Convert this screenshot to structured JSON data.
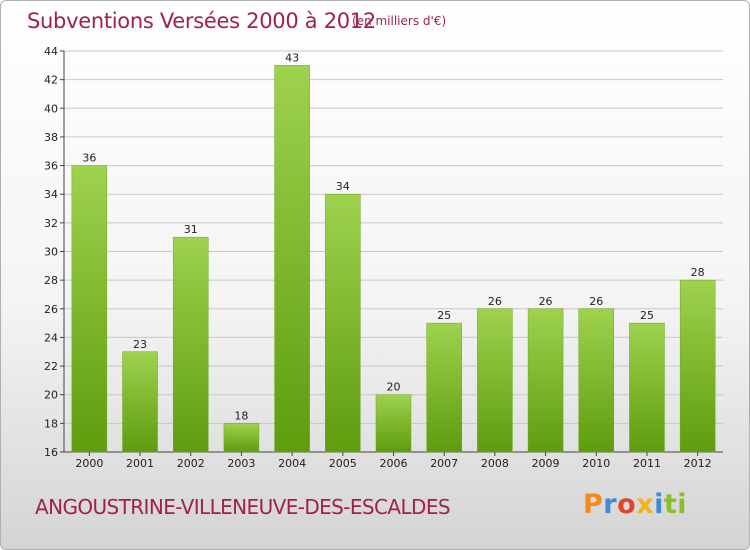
{
  "title": "Subventions Versées 2000 à 2012",
  "subtitle": "(en milliers d'€)",
  "commune": "ANGOUSTRINE-VILLENEUVE-DES-ESCALDES",
  "logo": {
    "letters": [
      "P",
      "r",
      "o",
      "x",
      "i",
      "ti"
    ]
  },
  "colors": {
    "title": "#a0224a",
    "bar_top": "#9fd24e",
    "bar_bottom": "#5e9c0e",
    "grid": "#c8c8c8"
  },
  "chart_data": {
    "type": "bar",
    "title": "Subventions Versées 2000 à 2012",
    "subtitle": "(en milliers d'€)",
    "categories": [
      "2000",
      "2001",
      "2002",
      "2003",
      "2004",
      "2005",
      "2006",
      "2007",
      "2008",
      "2009",
      "2010",
      "2011",
      "2012"
    ],
    "values": [
      36,
      23,
      31,
      18,
      43,
      34,
      20,
      25,
      26,
      26,
      26,
      25,
      28
    ],
    "data_labels": [
      "36",
      "23",
      "31",
      "18",
      "43",
      "34",
      "20",
      "25",
      "26",
      "26",
      "26",
      "25",
      "28"
    ],
    "ylim": [
      16,
      44
    ],
    "yticks": [
      16,
      18,
      20,
      22,
      24,
      26,
      28,
      30,
      32,
      34,
      36,
      38,
      40,
      42,
      44
    ],
    "ytick_labels": [
      "16",
      "18",
      "20",
      "22",
      "24",
      "26",
      "28",
      "30",
      "32",
      "34",
      "36",
      "38",
      "40",
      "42",
      "44"
    ],
    "grid": true,
    "legend": "none"
  }
}
